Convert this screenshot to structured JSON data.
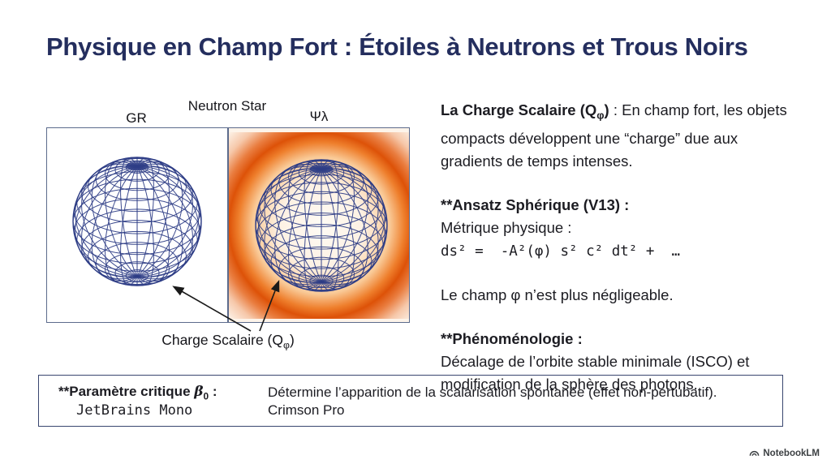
{
  "title": "Physique en Champ Fort : Étoiles à Neutrons et Trous Noirs",
  "figure": {
    "heading": "Neutron Star",
    "left_label": "GR",
    "right_label": "Ψλ",
    "caption_pre": "Charge Scalaire (Q",
    "caption_sub": "φ",
    "caption_post": ")"
  },
  "text_blocks": {
    "scalar_charge": {
      "head_pre": "La Charge Scalaire (Q",
      "head_sub": "φ",
      "head_post": ")",
      "body": " : En champ fort, les objets compacts développent une “charge” due aux gradients de temps intenses."
    },
    "ansatz": {
      "head": "**Ansatz Sphérique (V13) :",
      "eq_label": "Métrique physique : ",
      "equation": "ds² =  -A²(φ) s² c² dt² +  …"
    },
    "field_note": "Le champ φ n’est plus négligeable.",
    "phenomenology": {
      "head": "**Phénoménologie :",
      "body": "Décalage de l’orbite stable minimale (ISCO) et modification de la sphère des photons."
    }
  },
  "param_box": {
    "head_pre": "**Paramètre critique ",
    "beta": "β",
    "beta_sub": "0",
    "head_post": " :",
    "mono_label": "JetBrains Mono",
    "description": "Détermine l’apparition de la scalarisation spontanée (effet non-pertubatif).",
    "serif_label": "Crimson Pro"
  },
  "footer": {
    "brand": "NotebookLM"
  },
  "colors": {
    "title_navy": "#242e5e",
    "wireframe_navy": "#2e3d86",
    "glow_orange": "#dd5208",
    "panel_border": "#5c6b8c",
    "box_border": "#39466f",
    "arrow_black": "#1a1a1a"
  }
}
